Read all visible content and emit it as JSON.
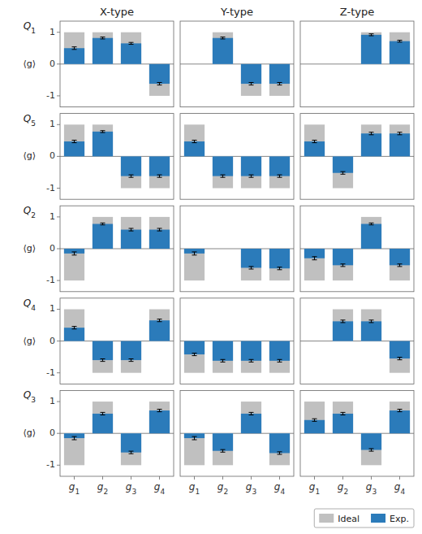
{
  "chart_data": [
    {
      "type": "bar",
      "title": "X-type",
      "y_label": "⟨g⟩",
      "annotations": [
        "Q1"
      ],
      "categories": [
        null,
        null,
        null,
        null
      ],
      "series": [
        {
          "color": "#c0c0c0",
          "values": [
            1,
            1,
            1,
            -1
          ]
        },
        {
          "color": "#2b7bba",
          "values": [
            0.5,
            0.82,
            0.65,
            -0.62
          ],
          "errors": [
            0.04,
            0.03,
            0.03,
            0.04
          ]
        }
      ],
      "ylim": [
        -1.35,
        1.35
      ],
      "yticks": [
        -1,
        0,
        1
      ],
      "tick_labels": "y"
    },
    {
      "type": "bar",
      "title": "Y-type",
      "categories": [
        null,
        null,
        null,
        null
      ],
      "series": [
        {
          "color": "#c0c0c0",
          "values": [
            0,
            1,
            -1,
            -1
          ]
        },
        {
          "color": "#2b7bba",
          "values": [
            0.0,
            0.82,
            -0.62,
            -0.62
          ],
          "errors": [
            null,
            0.03,
            0.04,
            0.04
          ]
        }
      ],
      "ylim": [
        -1.35,
        1.35
      ],
      "yticks": [
        -1,
        0,
        1
      ],
      "tick_labels": false
    },
    {
      "type": "bar",
      "title": "Z-type",
      "categories": [
        null,
        null,
        null,
        null
      ],
      "series": [
        {
          "color": "#c0c0c0",
          "values": [
            0,
            0,
            1,
            1
          ]
        },
        {
          "color": "#2b7bba",
          "values": [
            0.0,
            0.0,
            0.92,
            0.72
          ],
          "errors": [
            null,
            null,
            0.03,
            0.03
          ]
        }
      ],
      "ylim": [
        -1.35,
        1.35
      ],
      "yticks": [
        -1,
        0,
        1
      ],
      "tick_labels": false
    },
    {
      "type": "bar",
      "y_label": "⟨g⟩",
      "annotations": [
        "Q5"
      ],
      "categories": [
        null,
        null,
        null,
        null
      ],
      "series": [
        {
          "color": "#c0c0c0",
          "values": [
            1,
            1,
            -1,
            -1
          ]
        },
        {
          "color": "#2b7bba",
          "values": [
            0.47,
            0.78,
            -0.62,
            -0.62
          ],
          "errors": [
            0.04,
            0.03,
            0.04,
            0.04
          ]
        }
      ],
      "ylim": [
        -1.35,
        1.35
      ],
      "yticks": [
        -1,
        0,
        1
      ],
      "tick_labels": "y"
    },
    {
      "type": "bar",
      "categories": [
        null,
        null,
        null,
        null
      ],
      "series": [
        {
          "color": "#c0c0c0",
          "values": [
            1,
            -1,
            -1,
            -1
          ]
        },
        {
          "color": "#2b7bba",
          "values": [
            0.47,
            -0.62,
            -0.62,
            -0.62
          ],
          "errors": [
            0.04,
            0.04,
            0.04,
            0.04
          ]
        }
      ],
      "ylim": [
        -1.35,
        1.35
      ],
      "yticks": [
        -1,
        0,
        1
      ],
      "tick_labels": false
    },
    {
      "type": "bar",
      "categories": [
        null,
        null,
        null,
        null
      ],
      "series": [
        {
          "color": "#c0c0c0",
          "values": [
            1,
            -1,
            1,
            1
          ]
        },
        {
          "color": "#2b7bba",
          "values": [
            0.47,
            -0.52,
            0.72,
            0.72
          ],
          "errors": [
            0.04,
            0.04,
            0.04,
            0.04
          ]
        }
      ],
      "ylim": [
        -1.35,
        1.35
      ],
      "yticks": [
        -1,
        0,
        1
      ],
      "tick_labels": false
    },
    {
      "type": "bar",
      "y_label": "⟨g⟩",
      "annotations": [
        "Q2"
      ],
      "categories": [
        null,
        null,
        null,
        null
      ],
      "series": [
        {
          "color": "#c0c0c0",
          "values": [
            -1,
            1,
            1,
            1
          ]
        },
        {
          "color": "#2b7bba",
          "values": [
            -0.15,
            0.78,
            0.6,
            0.6
          ],
          "errors": [
            0.05,
            0.03,
            0.04,
            0.04
          ]
        }
      ],
      "ylim": [
        -1.35,
        1.35
      ],
      "yticks": [
        -1,
        0,
        1
      ],
      "tick_labels": "y"
    },
    {
      "type": "bar",
      "categories": [
        null,
        null,
        null,
        null
      ],
      "series": [
        {
          "color": "#c0c0c0",
          "values": [
            -1,
            0,
            -1,
            -1
          ]
        },
        {
          "color": "#2b7bba",
          "values": [
            -0.15,
            0.0,
            -0.6,
            -0.62
          ],
          "errors": [
            0.05,
            null,
            0.04,
            0.04
          ]
        }
      ],
      "ylim": [
        -1.35,
        1.35
      ],
      "yticks": [
        -1,
        0,
        1
      ],
      "tick_labels": false
    },
    {
      "type": "bar",
      "categories": [
        null,
        null,
        null,
        null
      ],
      "series": [
        {
          "color": "#c0c0c0",
          "values": [
            -1,
            -1,
            1,
            -1
          ]
        },
        {
          "color": "#2b7bba",
          "values": [
            -0.3,
            -0.52,
            0.78,
            -0.52
          ],
          "errors": [
            0.05,
            0.04,
            0.03,
            0.04
          ]
        }
      ],
      "ylim": [
        -1.35,
        1.35
      ],
      "yticks": [
        -1,
        0,
        1
      ],
      "tick_labels": false
    },
    {
      "type": "bar",
      "y_label": "⟨g⟩",
      "annotations": [
        "Q4"
      ],
      "categories": [
        null,
        null,
        null,
        null
      ],
      "series": [
        {
          "color": "#c0c0c0",
          "values": [
            1,
            -1,
            -1,
            1
          ]
        },
        {
          "color": "#2b7bba",
          "values": [
            0.42,
            -0.6,
            -0.6,
            0.65
          ],
          "errors": [
            0.04,
            0.04,
            0.04,
            0.04
          ]
        }
      ],
      "ylim": [
        -1.35,
        1.35
      ],
      "yticks": [
        -1,
        0,
        1
      ],
      "tick_labels": "y"
    },
    {
      "type": "bar",
      "categories": [
        null,
        null,
        null,
        null
      ],
      "series": [
        {
          "color": "#c0c0c0",
          "values": [
            -1,
            -1,
            -1,
            -1
          ]
        },
        {
          "color": "#2b7bba",
          "values": [
            -0.42,
            -0.62,
            -0.62,
            -0.62
          ],
          "errors": [
            0.04,
            0.04,
            0.04,
            0.04
          ]
        }
      ],
      "ylim": [
        -1.35,
        1.35
      ],
      "yticks": [
        -1,
        0,
        1
      ],
      "tick_labels": false
    },
    {
      "type": "bar",
      "categories": [
        null,
        null,
        null,
        null
      ],
      "series": [
        {
          "color": "#c0c0c0",
          "values": [
            0,
            1,
            1,
            -1
          ]
        },
        {
          "color": "#2b7bba",
          "values": [
            0.0,
            0.62,
            0.62,
            -0.55
          ],
          "errors": [
            null,
            0.04,
            0.04,
            0.04
          ]
        }
      ],
      "ylim": [
        -1.35,
        1.35
      ],
      "yticks": [
        -1,
        0,
        1
      ],
      "tick_labels": false
    },
    {
      "type": "bar",
      "y_label": "⟨g⟩",
      "annotations": [
        "Q3"
      ],
      "categories": [
        "g1",
        "g2",
        "g3",
        "g4"
      ],
      "series": [
        {
          "color": "#c0c0c0",
          "values": [
            -1,
            1,
            -1,
            1
          ]
        },
        {
          "color": "#2b7bba",
          "values": [
            -0.15,
            0.62,
            -0.6,
            0.72
          ],
          "errors": [
            0.05,
            0.04,
            0.04,
            0.04
          ]
        }
      ],
      "ylim": [
        -1.35,
        1.35
      ],
      "yticks": [
        -1,
        0,
        1
      ]
    },
    {
      "type": "bar",
      "categories": [
        "g1",
        "g2",
        "g3",
        "g4"
      ],
      "series": [
        {
          "color": "#c0c0c0",
          "values": [
            -1,
            -1,
            1,
            -1
          ]
        },
        {
          "color": "#2b7bba",
          "values": [
            -0.15,
            -0.55,
            0.62,
            -0.62
          ],
          "errors": [
            0.05,
            0.04,
            0.04,
            0.04
          ]
        }
      ],
      "ylim": [
        -1.35,
        1.35
      ],
      "yticks": [
        -1,
        0,
        1
      ],
      "tick_labels": "x"
    },
    {
      "type": "bar",
      "categories": [
        "g1",
        "g2",
        "g3",
        "g4"
      ],
      "series": [
        {
          "name": "Ideal",
          "color": "#c0c0c0",
          "values": [
            1,
            1,
            -1,
            1
          ]
        },
        {
          "name": "Exp.",
          "color": "#2b7bba",
          "values": [
            0.42,
            0.62,
            -0.52,
            0.72
          ],
          "errors": [
            0.04,
            0.04,
            0.04,
            0.04
          ]
        }
      ],
      "ylim": [
        -1.35,
        1.35
      ],
      "yticks": [
        -1,
        0,
        1
      ],
      "tick_labels": "x",
      "legend": "lower right"
    }
  ]
}
